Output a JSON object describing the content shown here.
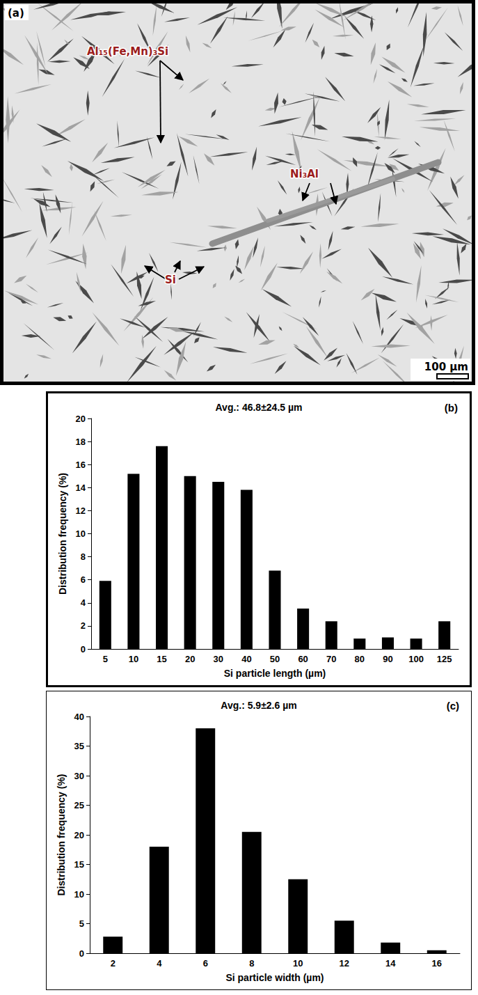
{
  "figure": {
    "panel_label": "(a)",
    "labels": [
      "Al₁₅(Fe,Mn)₃Si",
      "Ni₃Al",
      "Si"
    ],
    "scale_bar": "100 µm"
  },
  "chart_data": [
    {
      "type": "bar",
      "panel_label": "(b)",
      "annotation": "Avg.: 46.8±24.5 µm",
      "x_label": "Si particle length (µm)",
      "y_label": "Distribution frequency (%)",
      "categories": [
        "5",
        "10",
        "15",
        "20",
        "30",
        "40",
        "50",
        "60",
        "70",
        "80",
        "90",
        "100",
        "125"
      ],
      "values": [
        5.9,
        15.2,
        17.6,
        15.0,
        14.5,
        13.8,
        6.8,
        3.5,
        2.4,
        0.9,
        1.0,
        0.9,
        2.4
      ],
      "color": "#000000",
      "ylim": [
        0,
        20
      ],
      "yticks": [
        0,
        2,
        4,
        6,
        8,
        10,
        12,
        14,
        16,
        18,
        20
      ],
      "grid": false
    },
    {
      "type": "bar",
      "panel_label": "(c)",
      "annotation": "Avg.: 5.9±2.6 µm",
      "x_label": "Si particle width (µm)",
      "y_label": "Distribution frequency (%)",
      "categories": [
        "2",
        "4",
        "6",
        "8",
        "10",
        "12",
        "14",
        "16"
      ],
      "values": [
        2.8,
        18.0,
        38.0,
        20.5,
        12.5,
        5.5,
        1.8,
        0.5
      ],
      "color": "#000000",
      "ylim": [
        0,
        40
      ],
      "yticks": [
        0,
        5,
        10,
        15,
        20,
        25,
        30,
        35,
        40
      ],
      "grid": false
    }
  ]
}
